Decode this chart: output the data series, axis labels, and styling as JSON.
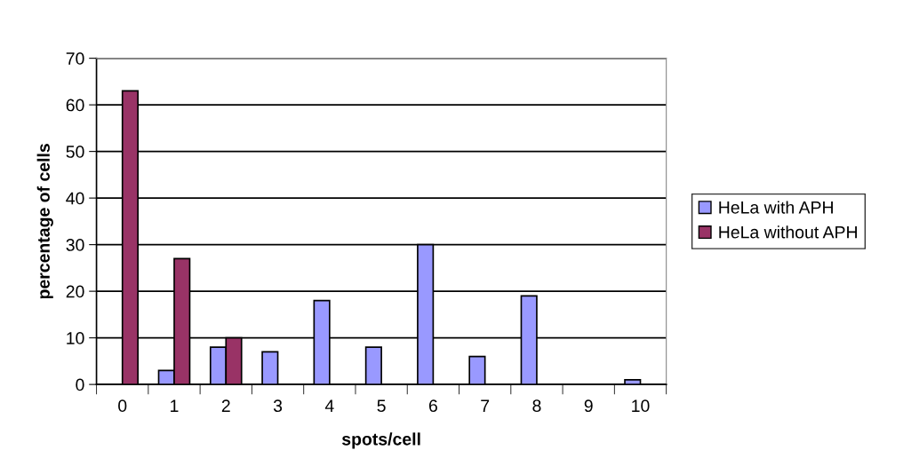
{
  "chart_data": {
    "type": "bar",
    "xlabel": "spots/cell",
    "ylabel": "percentage of cells",
    "categories": [
      "0",
      "1",
      "2",
      "3",
      "4",
      "5",
      "6",
      "7",
      "8",
      "9",
      "10"
    ],
    "series": [
      {
        "name": "HeLa with APH",
        "color": "#9999ff",
        "values": [
          null,
          3,
          8,
          7,
          18,
          8,
          30,
          6,
          19,
          null,
          1
        ]
      },
      {
        "name": "HeLa without APH",
        "color": "#993366",
        "values": [
          63,
          27,
          10,
          null,
          null,
          null,
          null,
          null,
          null,
          null,
          null
        ]
      }
    ],
    "ylim": [
      0,
      70
    ],
    "yticks": [
      0,
      10,
      20,
      30,
      40,
      50,
      60,
      70
    ],
    "grid": "y",
    "legend": "right"
  }
}
